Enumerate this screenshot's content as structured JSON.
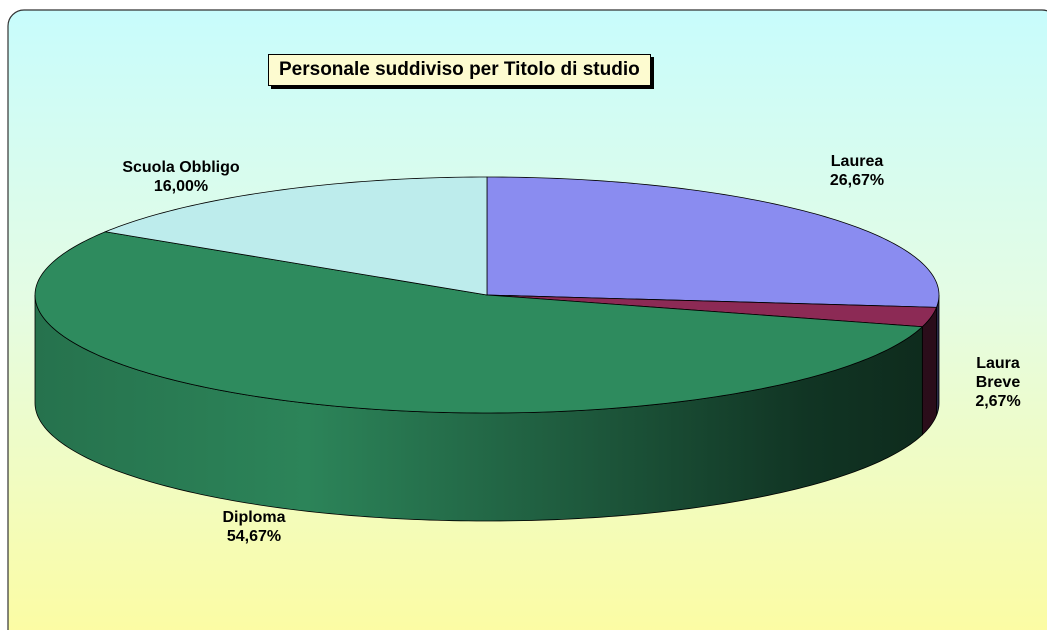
{
  "chart_data": {
    "type": "pie3d",
    "title": "Personale suddiviso per Titolo di studio",
    "categories": [
      "Laurea",
      "Laura Breve",
      "Diploma",
      "Scuola Obbligo"
    ],
    "values": [
      26.67,
      2.67,
      54.67,
      16.0
    ],
    "value_labels": [
      "26,67%",
      "2,67%",
      "54,67%",
      "16,00%"
    ],
    "colors": [
      "#8a8cf0",
      "#8c2a55",
      "#2e8b5e",
      "#bdecec"
    ]
  }
}
